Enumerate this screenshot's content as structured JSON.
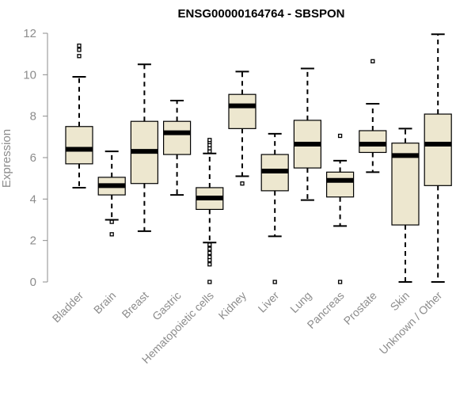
{
  "chart_data": {
    "type": "boxplot",
    "title": "ENSG00000164764 - SBSPON",
    "xlabel": "",
    "ylabel": "Expression",
    "ylim": [
      0,
      12
    ],
    "yticks": [
      0,
      2,
      4,
      6,
      8,
      10,
      12
    ],
    "box_fill": "#ede7cf",
    "line_color": "#000000",
    "axis_color": "#8c8c8c",
    "categories": [
      "Bladder",
      "Brain",
      "Breast",
      "Gastric",
      "Hematopoietic cells",
      "Kidney",
      "Liver",
      "Lung",
      "Pancreas",
      "Prostate",
      "Skin",
      "Unknown / Other"
    ],
    "boxes": [
      {
        "name": "Bladder",
        "low": 4.55,
        "q1": 5.7,
        "median": 6.4,
        "q3": 7.5,
        "high": 9.9,
        "outliers": [
          10.9,
          11.2,
          11.4
        ]
      },
      {
        "name": "Brain",
        "low": 3.0,
        "q1": 4.2,
        "median": 4.65,
        "q3": 5.05,
        "high": 6.3,
        "outliers": [
          2.9,
          2.3
        ]
      },
      {
        "name": "Breast",
        "low": 2.45,
        "q1": 4.75,
        "median": 6.3,
        "q3": 7.75,
        "high": 10.5,
        "outliers": []
      },
      {
        "name": "Gastric",
        "low": 4.2,
        "q1": 6.15,
        "median": 7.2,
        "q3": 7.75,
        "high": 8.75,
        "outliers": []
      },
      {
        "name": "Hematopoietic cells",
        "low": 1.9,
        "q1": 3.5,
        "median": 4.05,
        "q3": 4.55,
        "high": 6.2,
        "outliers": [
          6.3,
          6.45,
          6.6,
          6.75,
          6.85,
          1.8,
          1.6,
          1.4,
          1.2,
          1.05,
          0.85,
          0.0
        ]
      },
      {
        "name": "Kidney",
        "low": 5.1,
        "q1": 7.4,
        "median": 8.5,
        "q3": 9.05,
        "high": 10.15,
        "outliers": [
          4.75
        ]
      },
      {
        "name": "Liver",
        "low": 2.2,
        "q1": 4.4,
        "median": 5.35,
        "q3": 6.15,
        "high": 7.15,
        "outliers": [
          0.0
        ]
      },
      {
        "name": "Lung",
        "low": 3.95,
        "q1": 5.5,
        "median": 6.65,
        "q3": 7.8,
        "high": 10.3,
        "outliers": []
      },
      {
        "name": "Pancreas",
        "low": 2.7,
        "q1": 4.1,
        "median": 4.9,
        "q3": 5.3,
        "high": 5.85,
        "outliers": [
          7.05,
          0.0
        ]
      },
      {
        "name": "Prostate",
        "low": 5.3,
        "q1": 6.25,
        "median": 6.65,
        "q3": 7.3,
        "high": 8.6,
        "outliers": [
          10.65
        ]
      },
      {
        "name": "Skin",
        "low": 0.0,
        "q1": 2.75,
        "median": 6.1,
        "q3": 6.7,
        "high": 7.4,
        "outliers": []
      },
      {
        "name": "Unknown / Other",
        "low": 0.0,
        "q1": 4.65,
        "median": 6.65,
        "q3": 8.1,
        "high": 11.95,
        "outliers": []
      }
    ]
  }
}
